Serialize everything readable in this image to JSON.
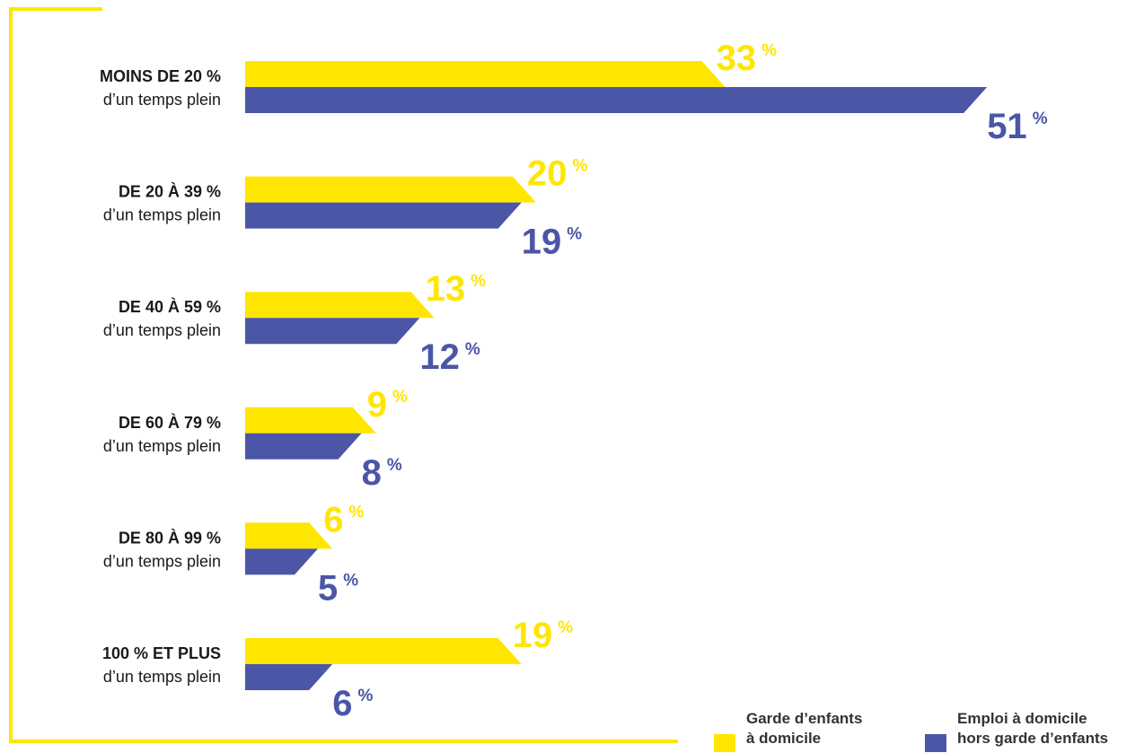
{
  "colors": {
    "frame": "#ffe600",
    "series1": "#ffe600",
    "series2": "#4b56a6",
    "series1_text": "#ffe600",
    "series2_text": "#4b56a6"
  },
  "chart_data": {
    "type": "bar",
    "orientation": "horizontal",
    "title": "",
    "xlabel": "",
    "ylabel": "",
    "xlim": [
      0,
      51
    ],
    "categories": [
      {
        "bold": "MOINS DE 20 %",
        "sub": "d’un temps plein"
      },
      {
        "bold": "DE 20 À 39 %",
        "sub": "d’un temps plein"
      },
      {
        "bold": "DE 40 À 59 %",
        "sub": "d’un temps plein"
      },
      {
        "bold": "DE 60 À 79 %",
        "sub": "d’un temps plein"
      },
      {
        "bold": "DE 80 À 99 %",
        "sub": "d’un temps plein"
      },
      {
        "bold": "100 % ET PLUS",
        "sub": "d’un temps plein"
      }
    ],
    "series": [
      {
        "name": "Garde d’enfants à domicile",
        "legend_lines": [
          "Garde d’enfants",
          "à domicile"
        ],
        "values": [
          33,
          20,
          13,
          9,
          6,
          19
        ]
      },
      {
        "name": "Emploi à domicile hors garde d’enfants",
        "legend_lines": [
          "Emploi à domicile",
          "hors garde d’enfants"
        ],
        "values": [
          51,
          19,
          12,
          8,
          5,
          6
        ]
      }
    ],
    "value_suffix": "%",
    "legend_position": "bottom-right",
    "grid": false
  }
}
